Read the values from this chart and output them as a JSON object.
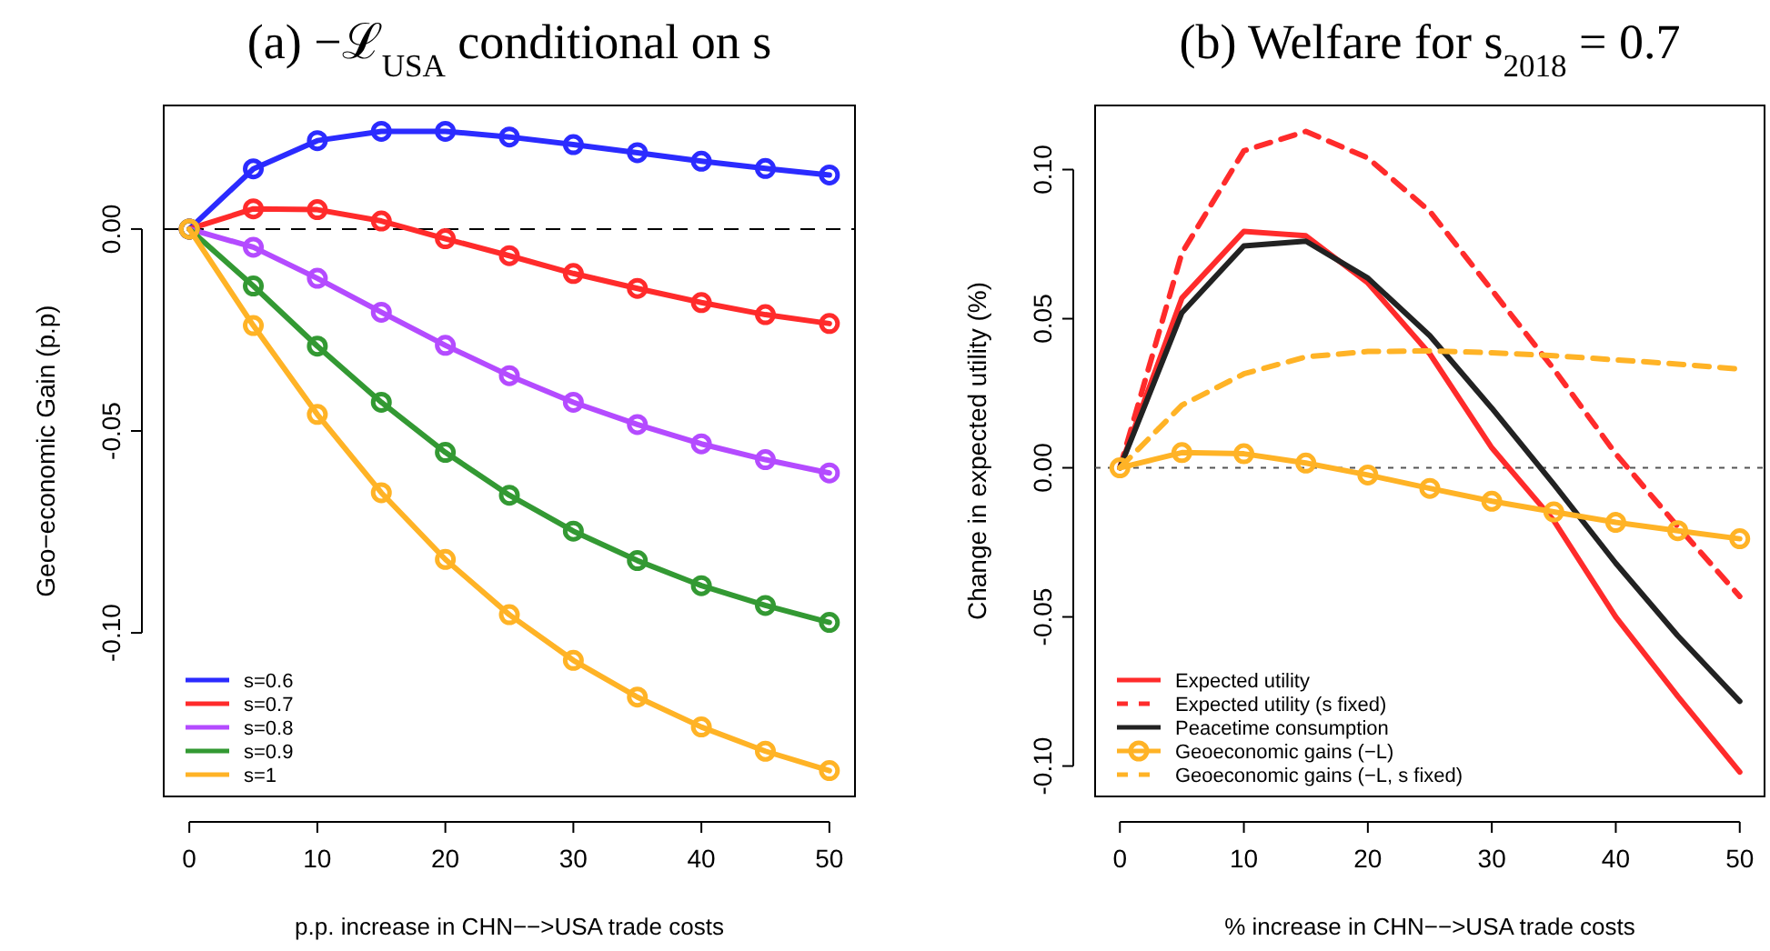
{
  "chart_data": [
    {
      "type": "line",
      "title": "(a) −ℒ$_{USA}$ conditional on s",
      "xlabel": "p.p. increase in CHN−−>USA trade costs",
      "ylabel": "Geo−economic Gain (p.p)",
      "x": [
        0,
        5,
        10,
        15,
        20,
        25,
        30,
        35,
        40,
        45,
        50
      ],
      "xlim": [
        -2,
        52
      ],
      "xticks": [
        0,
        10,
        20,
        30,
        40,
        50
      ],
      "ylim": [
        -0.1405,
        0.0306
      ],
      "yticks": [
        {
          "value": 0,
          "label": "0.00"
        },
        {
          "value": -0.05,
          "label": "-0.05"
        },
        {
          "value": -0.1,
          "label": "-0.10"
        }
      ],
      "legend": "bottom left",
      "marker": "circle",
      "line_style": "solid",
      "ref_lines": [
        {
          "axis": "y",
          "value": 0,
          "color": "#000000",
          "line_style": "dashed"
        }
      ],
      "series": [
        {
          "name": "s=0.6",
          "color": "#2b2bff",
          "values": [
            0,
            0.0149,
            0.0219,
            0.0242,
            0.0242,
            0.0228,
            0.0209,
            0.0189,
            0.0168,
            0.015,
            0.0134
          ]
        },
        {
          "name": "s=0.7",
          "color": "#ff2b2b",
          "values": [
            0,
            0.005,
            0.0048,
            0.002,
            -0.0024,
            -0.0066,
            -0.011,
            -0.0147,
            -0.0182,
            -0.0212,
            -0.0234
          ]
        },
        {
          "name": "s=0.8",
          "color": "#b44bff",
          "values": [
            0,
            -0.0045,
            -0.0122,
            -0.0206,
            -0.0288,
            -0.0363,
            -0.0429,
            -0.0484,
            -0.0532,
            -0.0571,
            -0.0604
          ]
        },
        {
          "name": "s=0.9",
          "color": "#339933",
          "values": [
            0,
            -0.0141,
            -0.029,
            -0.0429,
            -0.0553,
            -0.0659,
            -0.0748,
            -0.0821,
            -0.0883,
            -0.0932,
            -0.0974
          ]
        },
        {
          "name": "s=1",
          "color": "#ffb326",
          "values": [
            0,
            -0.0239,
            -0.0459,
            -0.0653,
            -0.0818,
            -0.0955,
            -0.1068,
            -0.1159,
            -0.1233,
            -0.1293,
            -0.1341
          ]
        }
      ]
    },
    {
      "type": "line",
      "title": "(b) Welfare for s$_{2018}$ = 0.7",
      "xlabel": "% increase in CHN−−>USA trade costs",
      "ylabel": "Change in expected utility (%)",
      "x": [
        0,
        5,
        10,
        15,
        20,
        25,
        30,
        35,
        40,
        45,
        50
      ],
      "xlim": [
        -2,
        52
      ],
      "xticks": [
        0,
        10,
        20,
        30,
        40,
        50
      ],
      "ylim": [
        -0.1102,
        0.1215
      ],
      "yticks": [
        {
          "value": -0.1,
          "label": "-0.10"
        },
        {
          "value": -0.05,
          "label": "-0.05"
        },
        {
          "value": 0,
          "label": "0.00"
        },
        {
          "value": 0.05,
          "label": "0.05"
        },
        {
          "value": 0.1,
          "label": "0.10"
        }
      ],
      "legend": "bottom left",
      "ref_lines": [
        {
          "axis": "y",
          "value": 0,
          "color": "#555555",
          "line_style": "dotted"
        }
      ],
      "series": [
        {
          "name": "Expected utility",
          "color": "#ff2b2b",
          "marker": "none",
          "line_style": "solid",
          "values": [
            0,
            0.0569,
            0.0793,
            0.0778,
            0.062,
            0.0382,
            0.0067,
            -0.0177,
            -0.05,
            -0.0766,
            -0.102
          ]
        },
        {
          "name": "Expected utility (s fixed)",
          "color": "#ff2b2b",
          "marker": "none",
          "line_style": "dashed",
          "values": [
            0,
            0.072,
            0.1063,
            0.1128,
            0.1039,
            0.086,
            0.0596,
            0.0331,
            0.0047,
            -0.0197,
            -0.0431
          ]
        },
        {
          "name": "Peacetime consumption",
          "color": "#222222",
          "marker": "none",
          "line_style": "solid",
          "values": [
            0,
            0.052,
            0.0744,
            0.076,
            0.0636,
            0.0443,
            0.02,
            -0.0055,
            -0.032,
            -0.0563,
            -0.0783
          ]
        },
        {
          "name": "Geoeconomic gains (−L)",
          "color": "#ffb326",
          "marker": "circle",
          "line_style": "solid",
          "values": [
            0,
            0.0051,
            0.0047,
            0.0016,
            -0.0024,
            -0.0069,
            -0.0112,
            -0.0148,
            -0.0183,
            -0.0211,
            -0.0238
          ]
        },
        {
          "name": "Geoeconomic gains (−L, s fixed)",
          "color": "#ffb326",
          "marker": "none",
          "line_style": "dashed",
          "values": [
            0,
            0.021,
            0.0315,
            0.0372,
            0.039,
            0.0392,
            0.0386,
            0.0376,
            0.0362,
            0.0348,
            0.0331
          ]
        }
      ]
    }
  ]
}
